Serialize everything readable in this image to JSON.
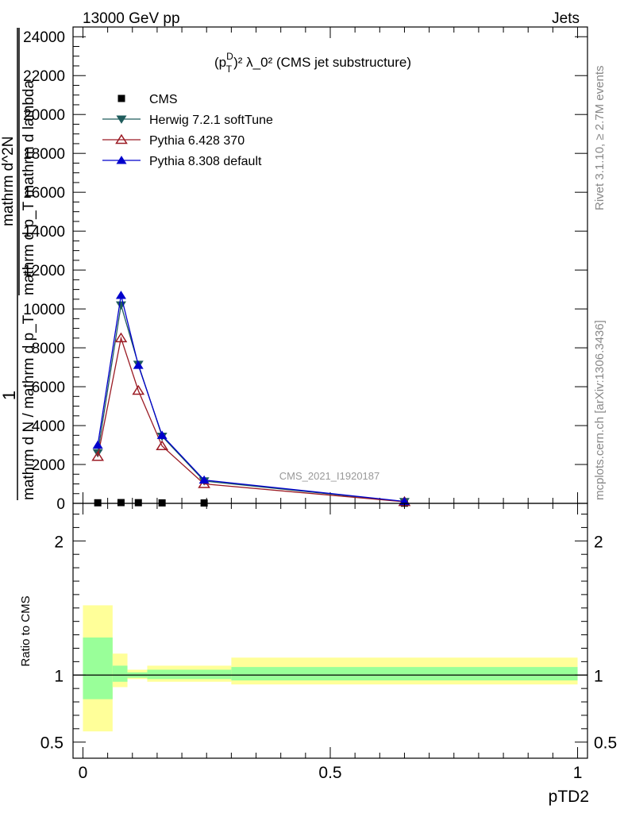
{
  "header": {
    "left": "13000 GeV pp",
    "right": "Jets"
  },
  "side_labels": {
    "rivet": "Rivet 3.1.10, ≥ 2.7M events",
    "mcplots": "mcplots.cern.ch [arXiv:1306.3436]"
  },
  "watermark": "CMS_2021_I1920187",
  "chart_data": [
    {
      "type": "line",
      "title_parts": {
        "p": "(p",
        "sup": "D",
        "sub": "T",
        "rest": ")² λ_0² (CMS jet substructure)"
      },
      "ylabel_parts": [
        "1",
        "mathrm d N / mathrm d p_T",
        "mathrm d^2N",
        "mathrm d p_T mathrm d lambda"
      ],
      "ylim": [
        0,
        24500
      ],
      "xlim": [
        -0.02,
        1.02
      ],
      "yticks": [
        {
          "v": 0,
          "label": "0"
        },
        {
          "v": 2000,
          "label": "2000"
        },
        {
          "v": 4000,
          "label": "4000"
        },
        {
          "v": 6000,
          "label": "6000"
        },
        {
          "v": 8000,
          "label": "8000"
        },
        {
          "v": 10000,
          "label": "10000"
        },
        {
          "v": 12000,
          "label": "12000"
        },
        {
          "v": 14000,
          "label": "14000"
        },
        {
          "v": 16000,
          "label": "16000"
        },
        {
          "v": 18000,
          "label": "18000"
        },
        {
          "v": 20000,
          "label": "20000"
        },
        {
          "v": 22000,
          "label": "22000"
        },
        {
          "v": 24000,
          "label": "24000"
        }
      ],
      "data_x": [
        0.03,
        0.077,
        0.112,
        0.16,
        0.245,
        0.65
      ],
      "series": [
        {
          "name": "CMS",
          "marker": "square",
          "color": "#000000",
          "values": [
            30,
            40,
            35,
            25,
            20,
            10
          ]
        },
        {
          "name": "Herwig 7.2.1 softTune",
          "marker": "triangle-down",
          "color": "#1f5c5c",
          "values": [
            2600,
            10200,
            7150,
            3450,
            1150,
            90
          ]
        },
        {
          "name": "Pythia 6.428 370",
          "marker": "triangle-up-open",
          "color": "#9b1b24",
          "values": [
            2400,
            8500,
            5800,
            2950,
            1000,
            80
          ]
        },
        {
          "name": "Pythia 8.308 default",
          "marker": "triangle-up",
          "color": "#0000cc",
          "values": [
            3000,
            10700,
            7100,
            3500,
            1200,
            100
          ]
        }
      ]
    },
    {
      "type": "area",
      "ylabel": "Ratio to CMS",
      "xlabel": "pTD2",
      "ylim": [
        0.38,
        2.28
      ],
      "xlim": [
        -0.02,
        1.02
      ],
      "yticks": [
        {
          "v": 0.5,
          "label": "0.5"
        },
        {
          "v": 1,
          "label": "1"
        },
        {
          "v": 2,
          "label": "2"
        }
      ],
      "xticks": [
        {
          "v": 0,
          "label": "0"
        },
        {
          "v": 0.5,
          "label": "0.5"
        },
        {
          "v": 1,
          "label": "1"
        }
      ],
      "bands": [
        {
          "x0": 0.0,
          "x1": 0.06,
          "inner": [
            0.82,
            1.28
          ],
          "outer": [
            0.58,
            1.52
          ]
        },
        {
          "x0": 0.06,
          "x1": 0.09,
          "inner": [
            0.95,
            1.07
          ],
          "outer": [
            0.91,
            1.16
          ]
        },
        {
          "x0": 0.09,
          "x1": 0.13,
          "inner": [
            0.98,
            1.02
          ],
          "outer": [
            0.97,
            1.04
          ]
        },
        {
          "x0": 0.13,
          "x1": 0.3,
          "inner": [
            0.97,
            1.04
          ],
          "outer": [
            0.95,
            1.07
          ]
        },
        {
          "x0": 0.3,
          "x1": 1.0,
          "inner": [
            0.96,
            1.06
          ],
          "outer": [
            0.93,
            1.13
          ]
        }
      ],
      "colors": {
        "inner": "#99ff99",
        "outer": "#ffff99"
      }
    }
  ]
}
